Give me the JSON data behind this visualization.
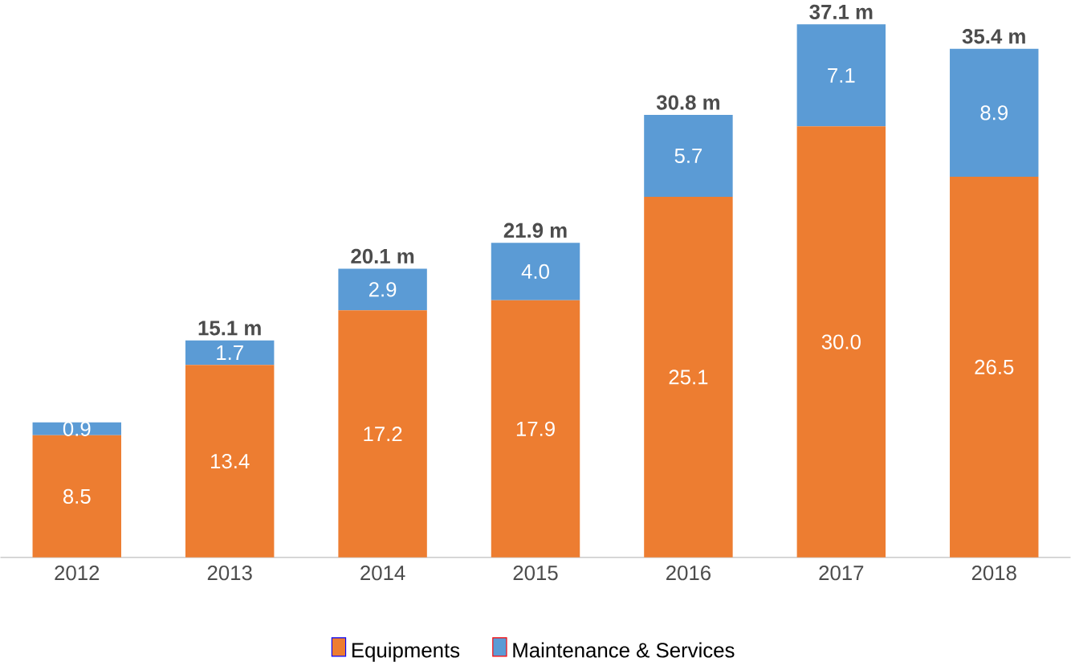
{
  "chart_data": {
    "type": "bar",
    "stacked": true,
    "categories": [
      "2012",
      "2013",
      "2014",
      "2015",
      "2016",
      "2017",
      "2018"
    ],
    "series": [
      {
        "name": "Equipments",
        "color": "#ed7d31",
        "values": [
          8.5,
          13.4,
          17.2,
          17.9,
          25.1,
          30.0,
          26.5
        ],
        "value_labels": [
          "8.5",
          "13.4",
          "17.2",
          "17.9",
          "25.1",
          "30.0",
          "26.5"
        ]
      },
      {
        "name": "Maintenance & Services",
        "color": "#5b9bd5",
        "values": [
          0.9,
          1.7,
          2.9,
          4.0,
          5.7,
          7.1,
          8.9
        ],
        "value_labels": [
          "0.9",
          "1.7",
          "2.9",
          "4.0",
          "5.7",
          "7.1",
          "8.9"
        ]
      }
    ],
    "totals": [
      null,
      "15.1 m",
      "20.1 m",
      "21.9 m",
      "30.8 m",
      "37.1 m",
      "35.4 m"
    ],
    "legend": "bottom"
  }
}
